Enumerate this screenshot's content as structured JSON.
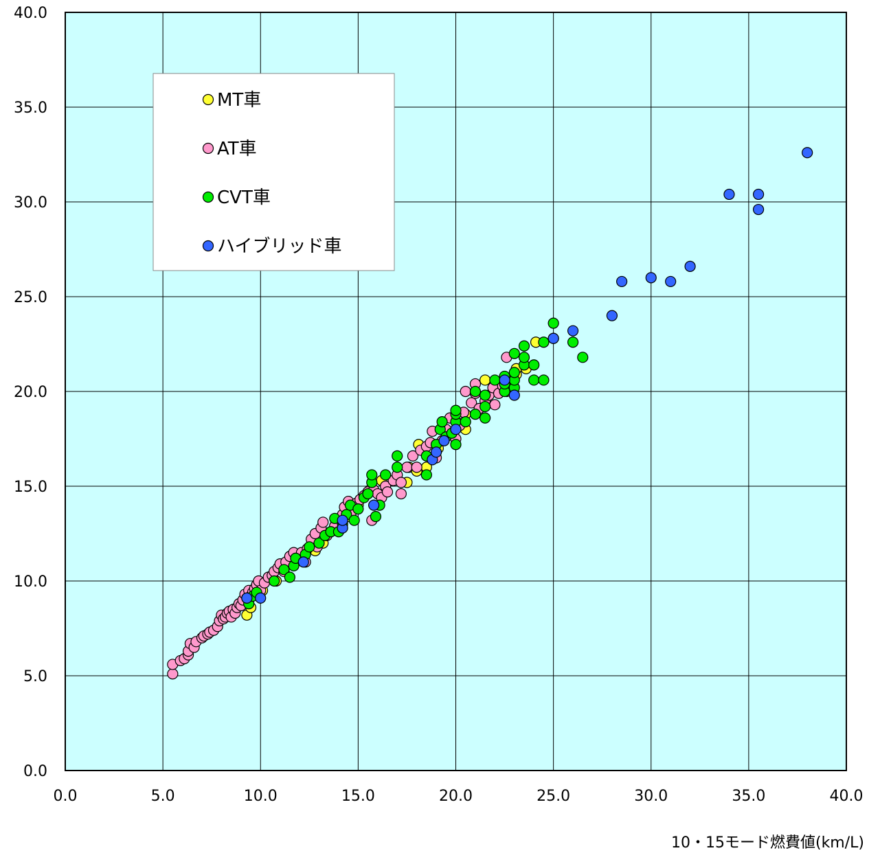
{
  "chart_data": {
    "type": "scatter",
    "title": "",
    "xlabel": "10・15モード燃費値(km/L)",
    "ylabel": "",
    "xlim": [
      0,
      40
    ],
    "ylim": [
      0,
      40
    ],
    "x_ticks": [
      "0.0",
      "5.0",
      "10.0",
      "15.0",
      "20.0",
      "25.0",
      "30.0",
      "35.0",
      "40.0"
    ],
    "y_ticks": [
      "0.0",
      "5.0",
      "10.0",
      "15.0",
      "20.0",
      "25.0",
      "30.0",
      "35.0",
      "40.0"
    ],
    "grid": true,
    "legend_position": "top-left",
    "plot_background": "#ccffff",
    "series": [
      {
        "name": "MT車",
        "color": "#ffff33",
        "points": [
          [
            9.3,
            8.2
          ],
          [
            9.5,
            8.6
          ],
          [
            10.1,
            9.5
          ],
          [
            10.8,
            10.0
          ],
          [
            11.2,
            10.6
          ],
          [
            12.8,
            11.6
          ],
          [
            13.2,
            12.0
          ],
          [
            13.8,
            12.9
          ],
          [
            14.5,
            13.4
          ],
          [
            15.0,
            14.0
          ],
          [
            15.6,
            14.8
          ],
          [
            16.2,
            15.3
          ],
          [
            17.5,
            15.2
          ],
          [
            17.6,
            16.0
          ],
          [
            18.0,
            15.8
          ],
          [
            18.1,
            17.2
          ],
          [
            18.5,
            16.0
          ],
          [
            19.1,
            17.0
          ],
          [
            19.6,
            17.8
          ],
          [
            20.2,
            18.3
          ],
          [
            20.5,
            18.0
          ],
          [
            20.5,
            18.8
          ],
          [
            21.5,
            20.6
          ],
          [
            22.6,
            20.0
          ],
          [
            23.1,
            20.9
          ],
          [
            23.1,
            21.2
          ],
          [
            23.6,
            21.2
          ],
          [
            24.1,
            22.6
          ],
          [
            25.0,
            22.8
          ]
        ]
      },
      {
        "name": "AT車",
        "color": "#ff99cc",
        "points": [
          [
            5.5,
            5.1
          ],
          [
            5.5,
            5.6
          ],
          [
            5.9,
            5.8
          ],
          [
            6.1,
            5.9
          ],
          [
            6.3,
            6.1
          ],
          [
            6.3,
            6.3
          ],
          [
            6.4,
            6.7
          ],
          [
            6.6,
            6.5
          ],
          [
            6.7,
            6.8
          ],
          [
            7.0,
            7.0
          ],
          [
            7.1,
            7.1
          ],
          [
            7.3,
            7.2
          ],
          [
            7.4,
            7.3
          ],
          [
            7.6,
            7.4
          ],
          [
            7.8,
            7.6
          ],
          [
            7.9,
            7.9
          ],
          [
            8.0,
            8.2
          ],
          [
            8.1,
            8.0
          ],
          [
            8.2,
            8.1
          ],
          [
            8.3,
            8.3
          ],
          [
            8.4,
            8.4
          ],
          [
            8.5,
            8.1
          ],
          [
            8.6,
            8.5
          ],
          [
            8.7,
            8.3
          ],
          [
            8.8,
            8.6
          ],
          [
            8.9,
            8.8
          ],
          [
            9.0,
            8.7
          ],
          [
            9.1,
            9.0
          ],
          [
            9.2,
            9.3
          ],
          [
            9.3,
            9.1
          ],
          [
            9.4,
            9.5
          ],
          [
            9.5,
            9.2
          ],
          [
            9.6,
            9.4
          ],
          [
            9.7,
            9.6
          ],
          [
            9.8,
            9.8
          ],
          [
            9.9,
            10.0
          ],
          [
            10.0,
            9.5
          ],
          [
            10.2,
            9.9
          ],
          [
            10.4,
            10.2
          ],
          [
            10.6,
            10.3
          ],
          [
            10.7,
            10.5
          ],
          [
            10.9,
            10.7
          ],
          [
            11.0,
            10.9
          ],
          [
            11.2,
            10.5
          ],
          [
            11.3,
            11.0
          ],
          [
            11.5,
            11.3
          ],
          [
            11.7,
            11.5
          ],
          [
            11.9,
            11.2
          ],
          [
            12.1,
            11.5
          ],
          [
            12.3,
            11.0
          ],
          [
            12.4,
            11.7
          ],
          [
            12.6,
            12.2
          ],
          [
            12.8,
            12.5
          ],
          [
            12.9,
            11.8
          ],
          [
            13.1,
            12.8
          ],
          [
            13.2,
            13.1
          ],
          [
            13.4,
            12.4
          ],
          [
            13.6,
            12.6
          ],
          [
            13.8,
            12.9
          ],
          [
            14.0,
            13.3
          ],
          [
            14.2,
            13.5
          ],
          [
            14.3,
            13.9
          ],
          [
            14.5,
            14.2
          ],
          [
            14.7,
            13.7
          ],
          [
            14.9,
            14.1
          ],
          [
            15.1,
            14.3
          ],
          [
            15.3,
            14.5
          ],
          [
            15.5,
            14.7
          ],
          [
            15.7,
            13.2
          ],
          [
            15.8,
            14.8
          ],
          [
            16.0,
            14.6
          ],
          [
            16.2,
            14.4
          ],
          [
            16.4,
            15.0
          ],
          [
            16.5,
            14.7
          ],
          [
            16.8,
            15.3
          ],
          [
            17.0,
            15.6
          ],
          [
            17.2,
            14.6
          ],
          [
            17.2,
            15.2
          ],
          [
            17.5,
            16.0
          ],
          [
            17.8,
            16.6
          ],
          [
            18.0,
            16.0
          ],
          [
            18.2,
            16.9
          ],
          [
            18.5,
            17.1
          ],
          [
            18.7,
            17.3
          ],
          [
            18.8,
            17.9
          ],
          [
            19.0,
            16.5
          ],
          [
            19.3,
            17.4
          ],
          [
            19.5,
            18.0
          ],
          [
            19.7,
            18.6
          ],
          [
            20.0,
            17.5
          ],
          [
            20.2,
            18.2
          ],
          [
            20.4,
            18.9
          ],
          [
            20.5,
            20.0
          ],
          [
            20.8,
            19.4
          ],
          [
            21.0,
            19.9
          ],
          [
            21.0,
            20.4
          ],
          [
            21.2,
            19.1
          ],
          [
            21.5,
            19.5
          ],
          [
            21.7,
            19.8
          ],
          [
            21.9,
            20.2
          ],
          [
            22.0,
            19.3
          ],
          [
            22.2,
            19.9
          ],
          [
            22.4,
            20.3
          ],
          [
            22.6,
            21.8
          ]
        ]
      },
      {
        "name": "CVT車",
        "color": "#00ee00",
        "points": [
          [
            9.4,
            8.8
          ],
          [
            9.6,
            9.2
          ],
          [
            9.8,
            9.4
          ],
          [
            10.7,
            10.0
          ],
          [
            11.2,
            10.6
          ],
          [
            11.5,
            10.2
          ],
          [
            11.7,
            10.8
          ],
          [
            11.8,
            11.2
          ],
          [
            12.3,
            11.4
          ],
          [
            12.5,
            11.8
          ],
          [
            13.0,
            12.0
          ],
          [
            13.3,
            12.4
          ],
          [
            13.6,
            12.6
          ],
          [
            13.8,
            13.3
          ],
          [
            14.0,
            12.6
          ],
          [
            14.2,
            13.0
          ],
          [
            14.4,
            13.5
          ],
          [
            14.6,
            14.0
          ],
          [
            14.8,
            13.2
          ],
          [
            15.0,
            13.8
          ],
          [
            15.3,
            14.4
          ],
          [
            15.5,
            14.6
          ],
          [
            15.7,
            15.2
          ],
          [
            15.7,
            15.6
          ],
          [
            15.9,
            13.4
          ],
          [
            16.1,
            14.0
          ],
          [
            16.4,
            15.6
          ],
          [
            17.0,
            16.0
          ],
          [
            17.0,
            16.6
          ],
          [
            18.5,
            15.6
          ],
          [
            18.5,
            16.6
          ],
          [
            19.0,
            17.2
          ],
          [
            19.2,
            18.0
          ],
          [
            19.3,
            18.4
          ],
          [
            19.5,
            17.6
          ],
          [
            19.8,
            17.8
          ],
          [
            20.0,
            17.2
          ],
          [
            20.0,
            18.4
          ],
          [
            20.0,
            18.8
          ],
          [
            20.0,
            19.0
          ],
          [
            20.5,
            18.4
          ],
          [
            21.0,
            18.8
          ],
          [
            21.0,
            20.0
          ],
          [
            21.5,
            18.6
          ],
          [
            21.5,
            19.2
          ],
          [
            21.5,
            19.8
          ],
          [
            22.0,
            20.6
          ],
          [
            22.5,
            20.0
          ],
          [
            22.5,
            20.4
          ],
          [
            22.5,
            20.8
          ],
          [
            23.0,
            20.2
          ],
          [
            23.0,
            20.6
          ],
          [
            23.0,
            21.0
          ],
          [
            23.0,
            22.0
          ],
          [
            23.5,
            21.4
          ],
          [
            23.5,
            21.8
          ],
          [
            23.5,
            22.4
          ],
          [
            24.0,
            20.6
          ],
          [
            24.0,
            21.4
          ],
          [
            24.5,
            20.6
          ],
          [
            24.5,
            22.6
          ],
          [
            25.0,
            23.6
          ],
          [
            26.0,
            22.6
          ],
          [
            26.5,
            21.8
          ]
        ]
      },
      {
        "name": "ハイブリッド車",
        "color": "#3366ff",
        "points": [
          [
            9.3,
            9.1
          ],
          [
            10.0,
            9.1
          ],
          [
            12.2,
            11.0
          ],
          [
            14.2,
            12.8
          ],
          [
            14.2,
            13.2
          ],
          [
            15.8,
            14.0
          ],
          [
            18.8,
            16.4
          ],
          [
            19.0,
            16.8
          ],
          [
            19.4,
            17.4
          ],
          [
            20.0,
            18.0
          ],
          [
            22.5,
            20.6
          ],
          [
            23.0,
            19.8
          ],
          [
            25.0,
            22.8
          ],
          [
            26.0,
            23.2
          ],
          [
            28.0,
            24.0
          ],
          [
            28.5,
            25.8
          ],
          [
            30.0,
            26.0
          ],
          [
            31.0,
            25.8
          ],
          [
            32.0,
            26.6
          ],
          [
            34.0,
            30.4
          ],
          [
            35.5,
            29.6
          ],
          [
            35.5,
            30.4
          ],
          [
            38.0,
            32.6
          ]
        ]
      }
    ]
  }
}
